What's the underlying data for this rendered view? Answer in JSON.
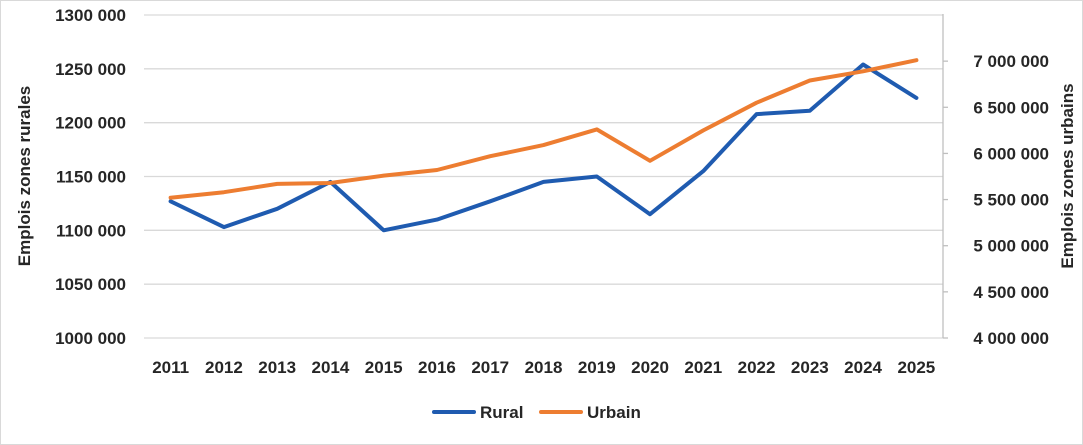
{
  "chart_data": {
    "type": "line",
    "x": [
      2011,
      2012,
      2013,
      2014,
      2015,
      2016,
      2017,
      2018,
      2019,
      2020,
      2021,
      2022,
      2023,
      2024,
      2025
    ],
    "x_labels": [
      "2011",
      "2012",
      "2013",
      "2014",
      "2015",
      "2016",
      "2017",
      "2018",
      "2019",
      "2020",
      "2021",
      "2022",
      "2023",
      "2024",
      "2025"
    ],
    "series": [
      {
        "name": "Rural",
        "axis": "left",
        "color": "#1f5bb0",
        "values": [
          1127000,
          1103000,
          1120000,
          1145000,
          1100000,
          1110000,
          1127000,
          1145000,
          1150000,
          1115000,
          1155000,
          1208000,
          1211000,
          1254000,
          1223000
        ]
      },
      {
        "name": "Urbain",
        "axis": "right",
        "color": "#ed7d31",
        "values": [
          5520000,
          5580000,
          5670000,
          5680000,
          5760000,
          5820000,
          5970000,
          6090000,
          6260000,
          5920000,
          6250000,
          6550000,
          6790000,
          6890000,
          7010000
        ]
      }
    ],
    "ylabel_left": "Emplois zones rurales",
    "ylabel_right": "Emplois zones urbains",
    "ylim_left": [
      1000000,
      1300000
    ],
    "ylim_right": [
      4000000,
      7500000
    ],
    "yticks_left": [
      "1000 000",
      "1050 000",
      "1100 000",
      "1150 000",
      "1200 000",
      "1250 000",
      "1300 000"
    ],
    "yticks_right": [
      "4 000 000",
      "4 500 000",
      "5 000 000",
      "5 500 000",
      "6 000 000",
      "6 500 000",
      "7 000 000"
    ],
    "grid": true,
    "legend_position": "bottom"
  }
}
